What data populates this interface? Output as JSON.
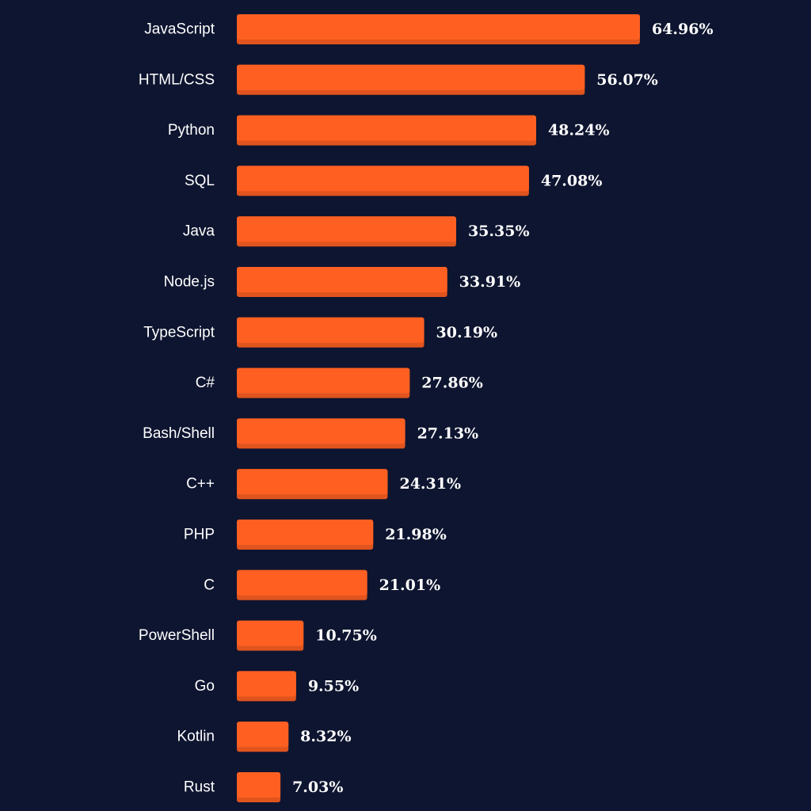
{
  "chart_data": {
    "type": "bar",
    "orientation": "horizontal",
    "title": "",
    "xlabel": "",
    "ylabel": "",
    "categories": [
      "JavaScript",
      "HTML/CSS",
      "Python",
      "SQL",
      "Java",
      "Node.js",
      "TypeScript",
      "C#",
      "Bash/Shell",
      "C++",
      "PHP",
      "C",
      "PowerShell",
      "Go",
      "Kotlin",
      "Rust"
    ],
    "values": [
      64.96,
      56.07,
      48.24,
      47.08,
      35.35,
      33.91,
      30.19,
      27.86,
      27.13,
      24.31,
      21.98,
      21.01,
      10.75,
      9.55,
      8.32,
      7.03
    ],
    "value_labels": [
      "64.96%",
      "56.07%",
      "48.24%",
      "47.08%",
      "35.35%",
      "33.91%",
      "30.19%",
      "27.86%",
      "27.13%",
      "24.31%",
      "21.98%",
      "21.01%",
      "10.75%",
      "9.55%",
      "8.32%",
      "7.03%"
    ],
    "unit": "%",
    "grid": false,
    "legend": "none",
    "colors": {
      "background": "#0e1530",
      "bar": "#ff6022",
      "bar_shadow": "#e0541e",
      "text": "#ffffff"
    }
  }
}
